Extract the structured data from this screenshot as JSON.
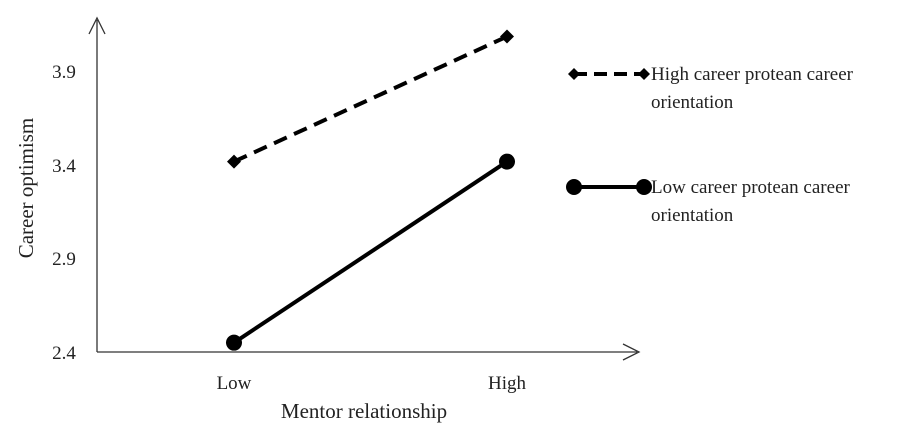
{
  "chart_data": {
    "type": "line",
    "title": "",
    "xlabel": "Mentor relationship",
    "ylabel": "Career optimism",
    "categories": [
      "Low",
      "High"
    ],
    "ylim": [
      2.4,
      3.9
    ],
    "yticks": [
      "2.4",
      "2.9",
      "3.4",
      "3.9"
    ],
    "grid": false,
    "legend_position": "right",
    "series": [
      {
        "name_line1": "High career protean career",
        "name_line2": "orientation",
        "values": [
          3.42,
          4.09
        ],
        "style": "dashed",
        "marker": "diamond",
        "color": "#000000"
      },
      {
        "name_line1": "Low career protean career",
        "name_line2": "orientation",
        "values": [
          2.45,
          3.42
        ],
        "style": "solid",
        "marker": "circle",
        "color": "#000000"
      }
    ]
  }
}
